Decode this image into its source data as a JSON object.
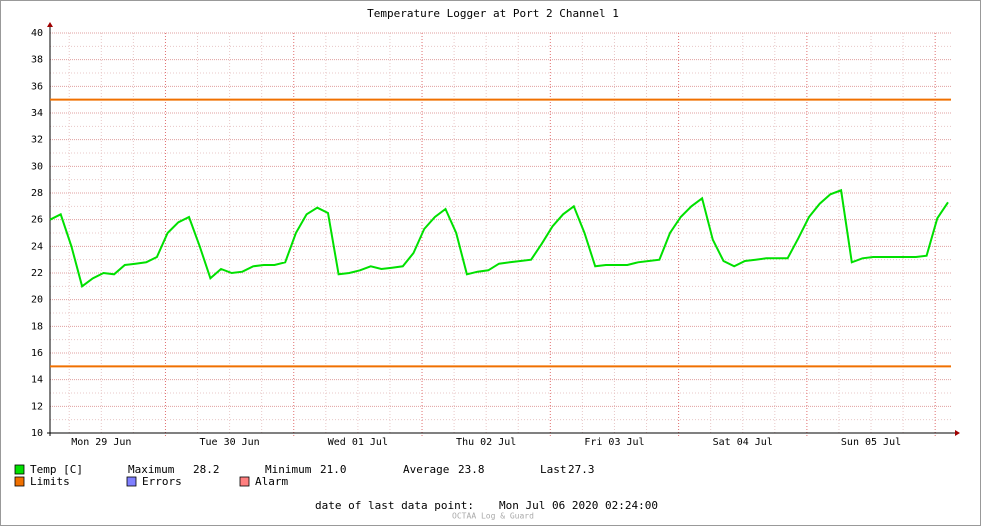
{
  "chart_data": {
    "type": "line",
    "title": "Temperature Logger at Port 2 Channel 1",
    "ylim": [
      10,
      40
    ],
    "yticks": [
      10,
      12,
      14,
      16,
      18,
      20,
      22,
      24,
      26,
      28,
      30,
      32,
      34,
      36,
      38,
      40
    ],
    "grid": true,
    "day_labels": [
      "Mon 29 Jun",
      "Tue 30 Jun",
      "Wed 01 Jul",
      "Thu 02 Jul",
      "Fri 03 Jul",
      "Sat 04 Jul",
      "Sun 05 Jul"
    ],
    "series": [
      {
        "name": "Temp [C]",
        "color": "#00e000",
        "values": [
          26.0,
          26.4,
          24.0,
          21.0,
          21.6,
          22.0,
          21.9,
          22.6,
          22.7,
          22.8,
          23.2,
          25.0,
          25.8,
          26.2,
          24.0,
          21.6,
          22.3,
          22.0,
          22.1,
          22.5,
          22.6,
          22.6,
          22.8,
          25.0,
          26.4,
          26.9,
          26.5,
          21.9,
          22.0,
          22.2,
          22.5,
          22.3,
          22.4,
          22.5,
          23.5,
          25.3,
          26.2,
          26.8,
          25.0,
          21.9,
          22.1,
          22.2,
          22.7,
          22.8,
          22.9,
          23.0,
          24.2,
          25.5,
          26.4,
          27.0,
          25.0,
          22.5,
          22.6,
          22.6,
          22.6,
          22.8,
          22.9,
          23.0,
          25.0,
          26.2,
          27.0,
          27.6,
          24.5,
          22.9,
          22.5,
          22.9,
          23.0,
          23.1,
          23.1,
          23.1,
          24.6,
          26.2,
          27.2,
          27.9,
          28.2,
          22.8,
          23.1,
          23.2,
          23.2,
          23.2,
          23.2,
          23.2,
          23.3,
          26.1,
          27.3
        ]
      }
    ],
    "limits": {
      "name": "Limits",
      "color": "#f07000",
      "values": [
        35,
        15
      ]
    },
    "errors": {
      "name": "Errors",
      "color": "#7f7fff"
    },
    "alarm": {
      "name": "Alarm",
      "color": "#ff7f7f"
    },
    "stats": [
      {
        "label": "Maximum",
        "value": "28.2"
      },
      {
        "label": "Minimum",
        "value": "21.0"
      },
      {
        "label": "Average",
        "value": "23.8"
      },
      {
        "label": "Last",
        "value": "27.3"
      }
    ],
    "footer": {
      "label": "date of last data point:",
      "value": "Mon Jul 06 2020 02:24:00"
    },
    "watermark": "OCTAA Log & Guard"
  }
}
